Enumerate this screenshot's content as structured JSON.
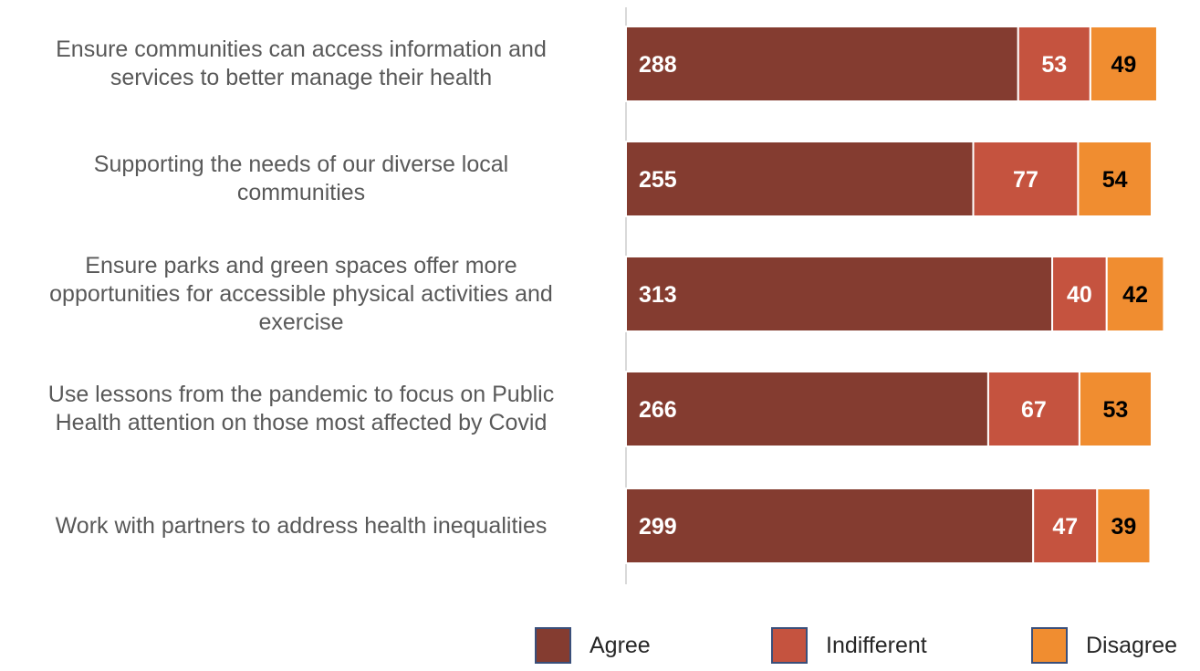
{
  "chart_data": {
    "type": "bar",
    "orientation": "horizontal",
    "stacked": true,
    "categories": [
      [
        "Ensure communities can access information and",
        "services to better manage their health"
      ],
      [
        "Supporting the needs of our diverse local",
        "communities"
      ],
      [
        "Ensure parks and green spaces offer more",
        "opportunities for accessible physical activities and",
        "exercise"
      ],
      [
        "Use lessons from the pandemic to focus on Public",
        "Health attention on those most affected by Covid"
      ],
      [
        "Work with partners to address health inequalities"
      ]
    ],
    "series": [
      {
        "name": "Agree",
        "color": "#843C30",
        "label_color": "#ffffff",
        "values": [
          288,
          255,
          313,
          266,
          299
        ]
      },
      {
        "name": "Indifferent",
        "color": "#C5533F",
        "label_color": "#ffffff",
        "values": [
          53,
          77,
          40,
          67,
          47
        ]
      },
      {
        "name": "Disagree",
        "color": "#F08D30",
        "label_color": "#000000",
        "values": [
          49,
          54,
          42,
          53,
          39
        ]
      }
    ],
    "xlim": [
      0,
      400
    ],
    "grid": false,
    "legend_position": "bottom-right"
  }
}
